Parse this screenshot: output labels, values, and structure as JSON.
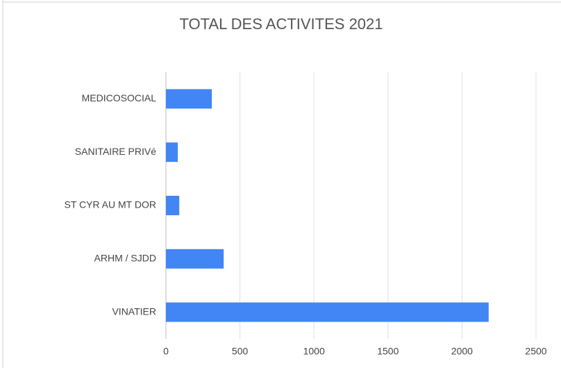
{
  "chart_data": {
    "type": "bar",
    "orientation": "horizontal",
    "title": "TOTAL DES ACTIVITES 2021",
    "categories": [
      "MEDICOSOCIAL",
      "SANITAIRE PRIVé",
      "ST CYR AU MT DOR",
      "ARHM / SJDD",
      "VINATIER"
    ],
    "values": [
      310,
      80,
      90,
      390,
      2180
    ],
    "color": "#4285f4",
    "xlim": [
      0,
      2500
    ],
    "xticks": [
      0,
      500,
      1000,
      1500,
      2000,
      2500
    ],
    "grid": true
  }
}
